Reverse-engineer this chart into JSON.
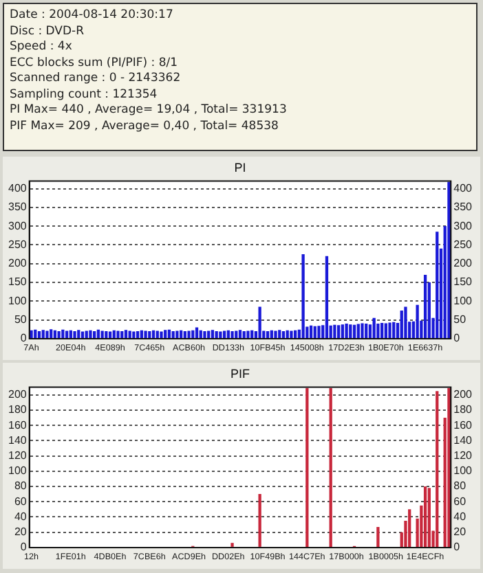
{
  "chart_data": [
    {
      "type": "other",
      "annotations": [
        "Date : 2004-08-14 20:30:17",
        "Disc : DVD-R",
        "Speed : 4x",
        "ECC blocks sum (PI/PIF) : 8/1",
        "Scanned range : 0 - 2143362",
        "Sampling count : 121354",
        "PI Max= 440 , Average= 19,04 , Total= 331913",
        "PIF Max= 209 , Average= 0,40 , Total= 48538"
      ]
    },
    {
      "type": "bar",
      "title": "PI",
      "grid": "y",
      "legend": false,
      "categories": [
        "7Ah",
        null,
        null,
        null,
        null,
        null,
        null,
        null,
        null,
        null,
        "20E04h",
        null,
        null,
        null,
        null,
        null,
        null,
        null,
        null,
        null,
        "4E089h",
        null,
        null,
        null,
        null,
        null,
        null,
        null,
        null,
        null,
        "7C465h",
        null,
        null,
        null,
        null,
        null,
        null,
        null,
        null,
        null,
        "ACB60h",
        null,
        null,
        null,
        null,
        null,
        null,
        null,
        null,
        null,
        "DD133h",
        null,
        null,
        null,
        null,
        null,
        null,
        null,
        null,
        null,
        "10FB45h",
        null,
        null,
        null,
        null,
        null,
        null,
        null,
        null,
        null,
        "145008h",
        null,
        null,
        null,
        null,
        null,
        null,
        null,
        null,
        null,
        "17D2E3h",
        null,
        null,
        null,
        null,
        null,
        null,
        null,
        null,
        null,
        "1B0E70h",
        null,
        null,
        null,
        null,
        null,
        null,
        null,
        null,
        null,
        "1E6637h",
        null,
        null,
        null,
        null,
        null,
        null
      ],
      "series": [
        {
          "color": "#1a1ad8",
          "values": [
            22,
            24,
            20,
            23,
            21,
            25,
            22,
            20,
            24,
            21,
            22,
            20,
            23,
            19,
            21,
            22,
            20,
            24,
            21,
            20,
            19,
            22,
            21,
            20,
            23,
            21,
            19,
            20,
            22,
            21,
            20,
            22,
            21,
            19,
            23,
            24,
            20,
            21,
            22,
            20,
            21,
            22,
            30,
            22,
            20,
            21,
            23,
            20,
            19,
            21,
            22,
            20,
            21,
            23,
            20,
            21,
            22,
            20,
            85,
            21,
            20,
            22,
            21,
            23,
            20,
            22,
            21,
            22,
            24,
            225,
            32,
            35,
            33,
            34,
            36,
            220,
            35,
            37,
            36,
            38,
            40,
            38,
            37,
            39,
            41,
            40,
            38,
            55,
            40,
            42,
            41,
            43,
            44,
            42,
            75,
            85,
            45,
            46,
            90,
            48,
            170,
            150,
            55,
            285,
            240,
            300,
            418
          ]
        }
      ],
      "ylim": [
        0,
        420
      ],
      "yticks": [
        0,
        50,
        100,
        150,
        200,
        250,
        300,
        350,
        400
      ],
      "y2lim": [
        0,
        420
      ],
      "y2ticks": [
        0,
        50,
        100,
        150,
        200,
        250,
        300,
        350,
        400
      ]
    },
    {
      "type": "bar",
      "title": "PIF",
      "grid": "y",
      "legend": false,
      "categories": [
        "12h",
        null,
        null,
        null,
        null,
        null,
        null,
        null,
        null,
        null,
        "1FE01h",
        null,
        null,
        null,
        null,
        null,
        null,
        null,
        null,
        null,
        "4DB0Eh",
        null,
        null,
        null,
        null,
        null,
        null,
        null,
        null,
        null,
        "7CBE6h",
        null,
        null,
        null,
        null,
        null,
        null,
        null,
        null,
        null,
        "ACD9Eh",
        null,
        null,
        null,
        null,
        null,
        null,
        null,
        null,
        null,
        "DD02Eh",
        null,
        null,
        null,
        null,
        null,
        null,
        null,
        null,
        null,
        "10F49Bh",
        null,
        null,
        null,
        null,
        null,
        null,
        null,
        null,
        null,
        "144C7Eh",
        null,
        null,
        null,
        null,
        null,
        null,
        null,
        null,
        null,
        "17B000h",
        null,
        null,
        null,
        null,
        null,
        null,
        null,
        null,
        null,
        "1B0005h",
        null,
        null,
        null,
        null,
        null,
        null,
        null,
        null,
        null,
        "1E4ECFh",
        null,
        null,
        null,
        null,
        null,
        null
      ],
      "series": [
        {
          "color": "#c8283c",
          "values": [
            0,
            0,
            0,
            0,
            0,
            0,
            0,
            0,
            0,
            0,
            0,
            0,
            0,
            0,
            0,
            0,
            0,
            0,
            0,
            0,
            0,
            0,
            0,
            0,
            0,
            0,
            0,
            0,
            0,
            0,
            0,
            0,
            0,
            0,
            0,
            0,
            0,
            0,
            0,
            0,
            0,
            2,
            0,
            0,
            0,
            0,
            0,
            0,
            0,
            0,
            0,
            6,
            0,
            0,
            0,
            0,
            0,
            0,
            70,
            0,
            0,
            0,
            0,
            0,
            0,
            0,
            0,
            0,
            0,
            0,
            209,
            0,
            0,
            0,
            0,
            0,
            209,
            0,
            0,
            0,
            0,
            0,
            2,
            0,
            0,
            0,
            0,
            0,
            27,
            0,
            0,
            0,
            0,
            0,
            20,
            35,
            50,
            0,
            38,
            55,
            80,
            78,
            22,
            205,
            0,
            170,
            209
          ]
        }
      ],
      "ylim": [
        0,
        210
      ],
      "yticks": [
        0,
        20,
        40,
        60,
        80,
        100,
        120,
        140,
        160,
        180,
        200
      ],
      "y2lim": [
        0,
        210
      ],
      "y2ticks": [
        0,
        20,
        40,
        60,
        80,
        100,
        120,
        140,
        160,
        180,
        200
      ]
    }
  ]
}
